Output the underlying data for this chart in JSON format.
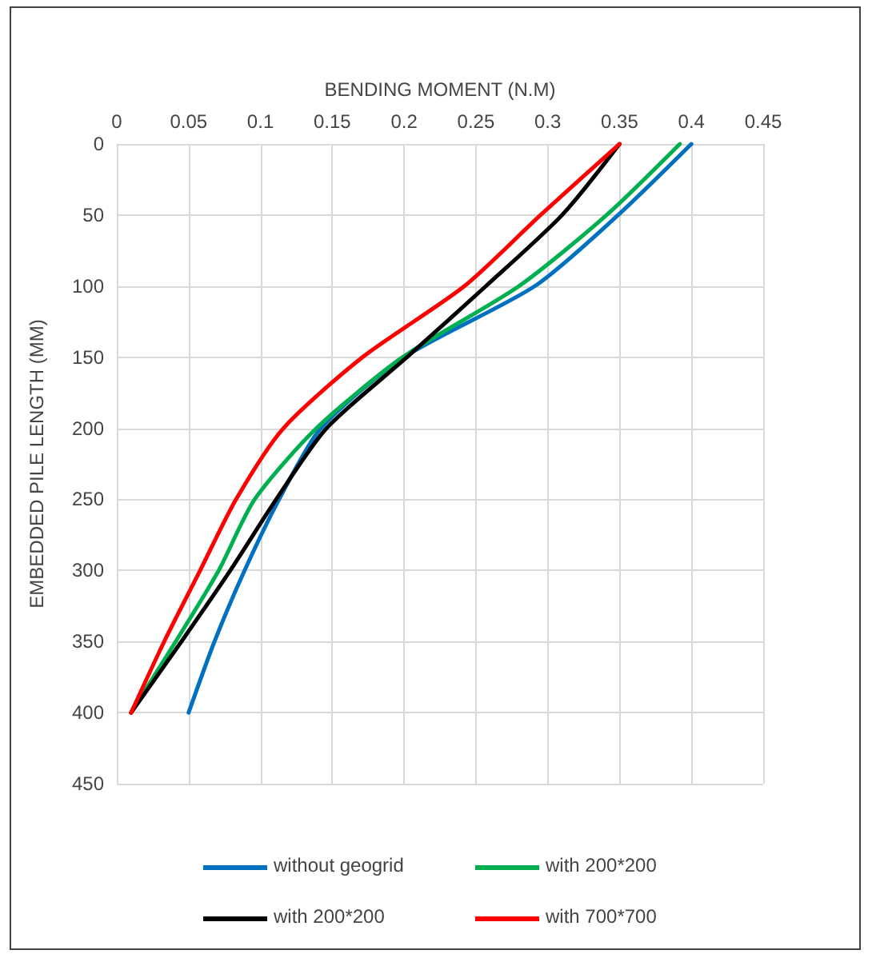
{
  "chart_data": {
    "type": "line",
    "xlabel": "BENDING MOMENT (N.M)",
    "ylabel": "EMBEDDED PILE LENGTH (MM)",
    "xlim": [
      0,
      0.45
    ],
    "xticks": [
      0,
      0.05,
      0.1,
      0.15,
      0.2,
      0.25,
      0.3,
      0.35,
      0.4,
      0.45
    ],
    "ylim": [
      450,
      0
    ],
    "yticks": [
      0,
      50,
      100,
      150,
      200,
      250,
      300,
      350,
      400,
      450
    ],
    "grid": true,
    "legend": "bottom",
    "marker": "none",
    "line_style": "solid",
    "series": [
      {
        "name": "without geogrid",
        "color": "#0070c0",
        "x": [
          0.4,
          0.349,
          0.291,
          0.2,
          0.142,
          0.113,
          0.089,
          0.068,
          0.05
        ],
        "values": [
          0,
          50,
          100,
          150,
          200,
          250,
          300,
          350,
          400
        ]
      },
      {
        "name": "with 200*200",
        "color": "#00b050",
        "x": [
          0.392,
          0.341,
          0.28,
          0.199,
          0.139,
          0.096,
          0.071,
          0.041,
          0.01
        ],
        "values": [
          0,
          50,
          100,
          150,
          200,
          250,
          300,
          350,
          400
        ]
      },
      {
        "name": "with 200*200",
        "color": "#000000",
        "x": [
          0.35,
          0.31,
          0.257,
          0.202,
          0.146,
          0.111,
          0.079,
          0.045,
          0.01
        ],
        "values": [
          0,
          50,
          100,
          150,
          200,
          250,
          300,
          350,
          400
        ]
      },
      {
        "name": "with 700*700",
        "color": "#ff0000",
        "x": [
          0.35,
          0.295,
          0.242,
          0.171,
          0.116,
          0.083,
          0.058,
          0.033,
          0.01
        ],
        "values": [
          0,
          50,
          100,
          150,
          200,
          250,
          300,
          350,
          400
        ]
      }
    ]
  }
}
